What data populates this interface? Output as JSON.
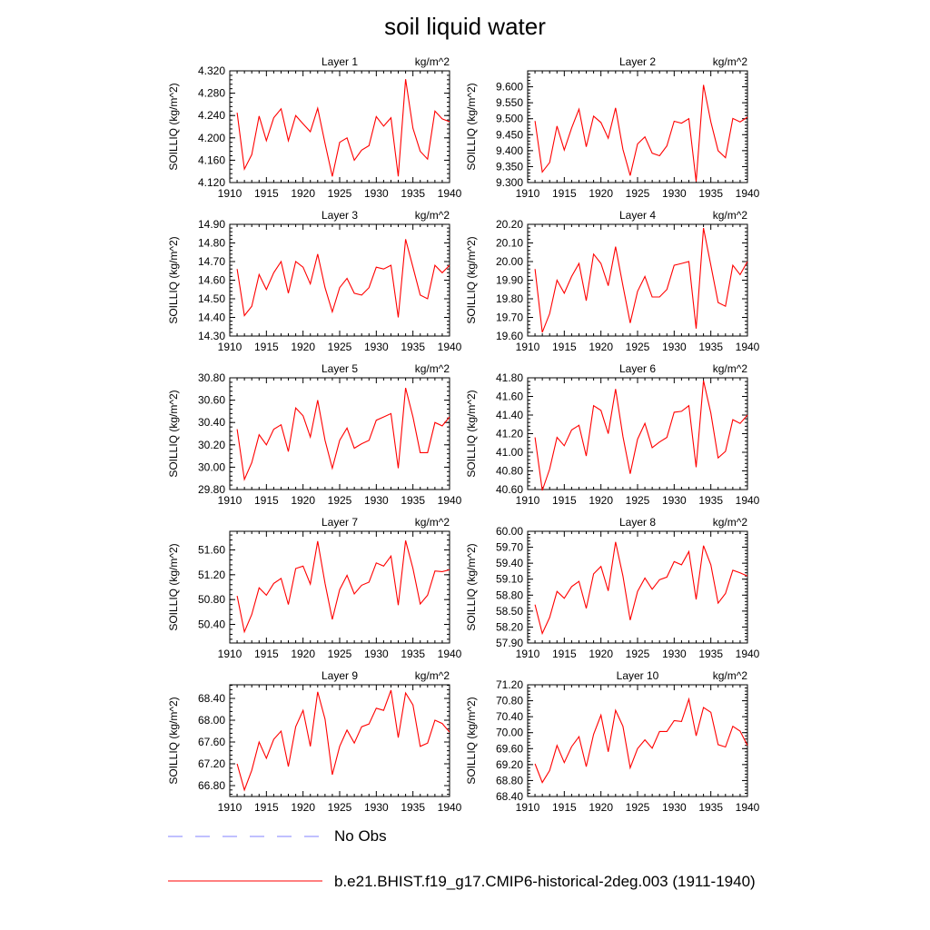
{
  "title": "soil liquid water",
  "colors": {
    "model_line": "#ff0000",
    "obs_line": "#9b9bff",
    "axis": "#000000"
  },
  "legend": [
    {
      "label": "No Obs",
      "style": "dashed",
      "color": "#9b9bff"
    },
    {
      "label": "b.e21.BHIST.f19_g17.CMIP6-historical-2deg.003 (1911-1940)",
      "style": "solid",
      "color": "#ff0000"
    }
  ],
  "chart_data": [
    {
      "type": "line",
      "title": "Layer 1",
      "units": "kg/m^2",
      "ylabel": "SOILLIQ  (kg/m^2)",
      "xlim": [
        1910,
        1940
      ],
      "xticks": [
        1910,
        1915,
        1920,
        1925,
        1930,
        1935,
        1940
      ],
      "ylim": [
        4.12,
        4.32
      ],
      "yticks": [
        "4.120",
        "4.160",
        "4.200",
        "4.240",
        "4.280",
        "4.320"
      ],
      "x": [
        1911,
        1912,
        1913,
        1914,
        1915,
        1916,
        1917,
        1918,
        1919,
        1920,
        1921,
        1922,
        1923,
        1924,
        1925,
        1926,
        1927,
        1928,
        1929,
        1930,
        1931,
        1932,
        1933,
        1934,
        1935,
        1936,
        1937,
        1938,
        1939,
        1940
      ],
      "series": [
        {
          "name": "b.e21.BHIST.f19_g17.CMIP6-historical-2deg.003 (1911-1940)",
          "values": [
            4.245,
            4.144,
            4.17,
            4.239,
            4.195,
            4.236,
            4.252,
            4.195,
            4.24,
            4.225,
            4.211,
            4.253,
            4.19,
            4.131,
            4.192,
            4.2,
            4.16,
            4.178,
            4.186,
            4.238,
            4.221,
            4.236,
            4.131,
            4.305,
            4.217,
            4.176,
            4.162,
            4.248,
            4.234,
            4.229
          ]
        }
      ]
    },
    {
      "type": "line",
      "title": "Layer 2",
      "units": "kg/m^2",
      "ylabel": "SOILLIQ  (kg/m^2)",
      "xlim": [
        1910,
        1940
      ],
      "xticks": [
        1910,
        1915,
        1920,
        1925,
        1930,
        1935,
        1940
      ],
      "ylim": [
        9.3,
        9.65
      ],
      "yticks": [
        "9.300",
        "9.350",
        "9.400",
        "9.450",
        "9.500",
        "9.550",
        "9.600"
      ],
      "x": [
        1911,
        1912,
        1913,
        1914,
        1915,
        1916,
        1917,
        1918,
        1919,
        1920,
        1921,
        1922,
        1923,
        1924,
        1925,
        1926,
        1927,
        1928,
        1929,
        1930,
        1931,
        1932,
        1933,
        1934,
        1935,
        1936,
        1937,
        1938,
        1939,
        1940
      ],
      "series": [
        {
          "name": "b.e21.BHIST.f19_g17.CMIP6-historical-2deg.003 (1911-1940)",
          "values": [
            9.493,
            9.333,
            9.363,
            9.477,
            9.402,
            9.471,
            9.53,
            9.412,
            9.508,
            9.488,
            9.439,
            9.534,
            9.404,
            9.322,
            9.421,
            9.443,
            9.392,
            9.384,
            9.415,
            9.492,
            9.486,
            9.5,
            9.303,
            9.606,
            9.49,
            9.4,
            9.378,
            9.501,
            9.49,
            9.505
          ]
        }
      ]
    },
    {
      "type": "line",
      "title": "Layer 3",
      "units": "kg/m^2",
      "ylabel": "SOILLIQ  (kg/m^2)",
      "xlim": [
        1910,
        1940
      ],
      "xticks": [
        1910,
        1915,
        1920,
        1925,
        1930,
        1935,
        1940
      ],
      "ylim": [
        14.3,
        14.9
      ],
      "yticks": [
        "14.30",
        "14.40",
        "14.50",
        "14.60",
        "14.70",
        "14.80",
        "14.90"
      ],
      "x": [
        1911,
        1912,
        1913,
        1914,
        1915,
        1916,
        1917,
        1918,
        1919,
        1920,
        1921,
        1922,
        1923,
        1924,
        1925,
        1926,
        1927,
        1928,
        1929,
        1930,
        1931,
        1932,
        1933,
        1934,
        1935,
        1936,
        1937,
        1938,
        1939,
        1940
      ],
      "series": [
        {
          "name": "b.e21.BHIST.f19_g17.CMIP6-historical-2deg.003 (1911-1940)",
          "values": [
            14.66,
            14.41,
            14.46,
            14.63,
            14.55,
            14.64,
            14.7,
            14.53,
            14.7,
            14.67,
            14.58,
            14.74,
            14.56,
            14.43,
            14.56,
            14.61,
            14.53,
            14.52,
            14.56,
            14.67,
            14.66,
            14.68,
            14.4,
            14.82,
            14.67,
            14.52,
            14.5,
            14.68,
            14.64,
            14.68
          ]
        }
      ]
    },
    {
      "type": "line",
      "title": "Layer 4",
      "units": "kg/m^2",
      "ylabel": "SOILLIQ  (kg/m^2)",
      "xlim": [
        1910,
        1940
      ],
      "xticks": [
        1910,
        1915,
        1920,
        1925,
        1930,
        1935,
        1940
      ],
      "ylim": [
        19.6,
        20.2
      ],
      "yticks": [
        "19.60",
        "19.70",
        "19.80",
        "19.90",
        "20.00",
        "20.10",
        "20.20"
      ],
      "x": [
        1911,
        1912,
        1913,
        1914,
        1915,
        1916,
        1917,
        1918,
        1919,
        1920,
        1921,
        1922,
        1923,
        1924,
        1925,
        1926,
        1927,
        1928,
        1929,
        1930,
        1931,
        1932,
        1933,
        1934,
        1935,
        1936,
        1937,
        1938,
        1939,
        1940
      ],
      "series": [
        {
          "name": "b.e21.BHIST.f19_g17.CMIP6-historical-2deg.003 (1911-1940)",
          "values": [
            19.96,
            19.62,
            19.72,
            19.9,
            19.83,
            19.92,
            19.99,
            19.79,
            20.04,
            19.99,
            19.87,
            20.08,
            19.87,
            19.67,
            19.84,
            19.92,
            19.81,
            19.81,
            19.85,
            19.98,
            19.99,
            20.0,
            19.64,
            20.18,
            19.98,
            19.78,
            19.76,
            19.98,
            19.93,
            20.0
          ]
        }
      ]
    },
    {
      "type": "line",
      "title": "Layer 5",
      "units": "kg/m^2",
      "ylabel": "SOILLIQ  (kg/m^2)",
      "xlim": [
        1910,
        1940
      ],
      "xticks": [
        1910,
        1915,
        1920,
        1925,
        1930,
        1935,
        1940
      ],
      "ylim": [
        29.8,
        30.8
      ],
      "yticks": [
        "29.80",
        "30.00",
        "30.20",
        "30.40",
        "30.60",
        "30.80"
      ],
      "x": [
        1911,
        1912,
        1913,
        1914,
        1915,
        1916,
        1917,
        1918,
        1919,
        1920,
        1921,
        1922,
        1923,
        1924,
        1925,
        1926,
        1927,
        1928,
        1929,
        1930,
        1931,
        1932,
        1933,
        1934,
        1935,
        1936,
        1937,
        1938,
        1939,
        1940
      ],
      "series": [
        {
          "name": "b.e21.BHIST.f19_g17.CMIP6-historical-2deg.003 (1911-1940)",
          "values": [
            30.34,
            29.89,
            30.04,
            30.29,
            30.2,
            30.34,
            30.38,
            30.14,
            30.53,
            30.46,
            30.27,
            30.6,
            30.24,
            29.99,
            30.24,
            30.35,
            30.17,
            30.21,
            30.24,
            30.42,
            30.45,
            30.48,
            29.99,
            30.71,
            30.45,
            30.13,
            30.13,
            30.4,
            30.37,
            30.45
          ]
        }
      ]
    },
    {
      "type": "line",
      "title": "Layer 6",
      "units": "kg/m^2",
      "ylabel": "SOILLIQ  (kg/m^2)",
      "xlim": [
        1910,
        1940
      ],
      "xticks": [
        1910,
        1915,
        1920,
        1925,
        1930,
        1935,
        1940
      ],
      "ylim": [
        40.6,
        41.8
      ],
      "yticks": [
        "40.60",
        "40.80",
        "41.00",
        "41.20",
        "41.40",
        "41.60",
        "41.80"
      ],
      "x": [
        1911,
        1912,
        1913,
        1914,
        1915,
        1916,
        1917,
        1918,
        1919,
        1920,
        1921,
        1922,
        1923,
        1924,
        1925,
        1926,
        1927,
        1928,
        1929,
        1930,
        1931,
        1932,
        1933,
        1934,
        1935,
        1936,
        1937,
        1938,
        1939,
        1940
      ],
      "series": [
        {
          "name": "b.e21.BHIST.f19_g17.CMIP6-historical-2deg.003 (1911-1940)",
          "values": [
            41.16,
            40.59,
            40.82,
            41.16,
            41.07,
            41.24,
            41.29,
            40.96,
            41.5,
            41.45,
            41.2,
            41.68,
            41.17,
            40.77,
            41.14,
            41.31,
            41.05,
            41.11,
            41.16,
            41.43,
            41.44,
            41.5,
            40.84,
            41.77,
            41.42,
            40.94,
            41.01,
            41.35,
            41.31,
            41.4
          ]
        }
      ]
    },
    {
      "type": "line",
      "title": "Layer 7",
      "units": "kg/m^2",
      "ylabel": "SOILLIQ  (kg/m^2)",
      "xlim": [
        1910,
        1940
      ],
      "xticks": [
        1910,
        1915,
        1920,
        1925,
        1930,
        1935,
        1940
      ],
      "ylim": [
        50.1,
        51.9
      ],
      "yticks": [
        "50.40",
        "50.80",
        "51.20",
        "51.60"
      ],
      "x": [
        1911,
        1912,
        1913,
        1914,
        1915,
        1916,
        1917,
        1918,
        1919,
        1920,
        1921,
        1922,
        1923,
        1924,
        1925,
        1926,
        1927,
        1928,
        1929,
        1930,
        1931,
        1932,
        1933,
        1934,
        1935,
        1936,
        1937,
        1938,
        1939,
        1940
      ],
      "series": [
        {
          "name": "b.e21.BHIST.f19_g17.CMIP6-historical-2deg.003 (1911-1940)",
          "values": [
            50.86,
            50.28,
            50.56,
            50.99,
            50.87,
            51.06,
            51.14,
            50.72,
            51.3,
            51.34,
            51.05,
            51.74,
            51.06,
            50.48,
            50.96,
            51.19,
            50.89,
            51.03,
            51.08,
            51.39,
            51.34,
            51.5,
            50.71,
            51.75,
            51.3,
            50.73,
            50.87,
            51.26,
            51.25,
            51.28
          ]
        }
      ]
    },
    {
      "type": "line",
      "title": "Layer 8",
      "units": "kg/m^2",
      "ylabel": "SOILLIQ  (kg/m^2)",
      "xlim": [
        1910,
        1940
      ],
      "xticks": [
        1910,
        1915,
        1920,
        1925,
        1930,
        1935,
        1940
      ],
      "ylim": [
        57.9,
        60.0
      ],
      "yticks": [
        "57.90",
        "58.20",
        "58.50",
        "58.80",
        "59.10",
        "59.40",
        "59.70",
        "60.00"
      ],
      "x": [
        1911,
        1912,
        1913,
        1914,
        1915,
        1916,
        1917,
        1918,
        1919,
        1920,
        1921,
        1922,
        1923,
        1924,
        1925,
        1926,
        1927,
        1928,
        1929,
        1930,
        1931,
        1932,
        1933,
        1934,
        1935,
        1936,
        1937,
        1938,
        1939,
        1940
      ],
      "series": [
        {
          "name": "b.e21.BHIST.f19_g17.CMIP6-historical-2deg.003 (1911-1940)",
          "values": [
            58.62,
            58.08,
            58.38,
            58.87,
            58.74,
            58.96,
            59.06,
            58.55,
            59.2,
            59.34,
            58.88,
            59.8,
            59.16,
            58.33,
            58.87,
            59.12,
            58.91,
            59.09,
            59.14,
            59.43,
            59.37,
            59.62,
            58.72,
            59.73,
            59.37,
            58.65,
            58.83,
            59.27,
            59.22,
            59.16
          ]
        }
      ]
    },
    {
      "type": "line",
      "title": "Layer 9",
      "units": "kg/m^2",
      "ylabel": "SOILLIQ  (kg/m^2)",
      "xlim": [
        1910,
        1940
      ],
      "xticks": [
        1910,
        1915,
        1920,
        1925,
        1930,
        1935,
        1940
      ],
      "ylim": [
        66.6,
        68.65
      ],
      "yticks": [
        "66.80",
        "67.20",
        "67.60",
        "68.00",
        "68.40"
      ],
      "x": [
        1911,
        1912,
        1913,
        1914,
        1915,
        1916,
        1917,
        1918,
        1919,
        1920,
        1921,
        1922,
        1923,
        1924,
        1925,
        1926,
        1927,
        1928,
        1929,
        1930,
        1931,
        1932,
        1933,
        1934,
        1935,
        1936,
        1937,
        1938,
        1939,
        1940
      ],
      "series": [
        {
          "name": "b.e21.BHIST.f19_g17.CMIP6-historical-2deg.003 (1911-1940)",
          "values": [
            67.2,
            66.72,
            67.08,
            67.6,
            67.3,
            67.65,
            67.8,
            67.15,
            67.88,
            68.18,
            67.52,
            68.52,
            68.02,
            67.0,
            67.52,
            67.82,
            67.58,
            67.88,
            67.93,
            68.22,
            68.18,
            68.55,
            67.68,
            68.5,
            68.28,
            67.52,
            67.58,
            68.0,
            67.94,
            67.78
          ]
        }
      ]
    },
    {
      "type": "line",
      "title": "Layer 10",
      "units": "kg/m^2",
      "ylabel": "SOILLIQ  (kg/m^2)",
      "xlim": [
        1910,
        1940
      ],
      "xticks": [
        1910,
        1915,
        1920,
        1925,
        1930,
        1935,
        1940
      ],
      "ylim": [
        68.4,
        71.2
      ],
      "yticks": [
        "68.40",
        "68.80",
        "69.20",
        "69.60",
        "70.00",
        "70.40",
        "70.80",
        "71.20"
      ],
      "x": [
        1911,
        1912,
        1913,
        1914,
        1915,
        1916,
        1917,
        1918,
        1919,
        1920,
        1921,
        1922,
        1923,
        1924,
        1925,
        1926,
        1927,
        1928,
        1929,
        1930,
        1931,
        1932,
        1933,
        1934,
        1935,
        1936,
        1937,
        1938,
        1939,
        1940
      ],
      "series": [
        {
          "name": "b.e21.BHIST.f19_g17.CMIP6-historical-2deg.003 (1911-1940)",
          "values": [
            69.22,
            68.75,
            69.05,
            69.68,
            69.25,
            69.65,
            69.9,
            69.15,
            69.96,
            70.44,
            69.52,
            70.56,
            70.16,
            69.12,
            69.6,
            69.82,
            69.61,
            70.03,
            70.03,
            70.3,
            70.28,
            70.84,
            69.92,
            70.63,
            70.51,
            69.7,
            69.64,
            70.16,
            70.04,
            69.68
          ]
        }
      ]
    }
  ]
}
